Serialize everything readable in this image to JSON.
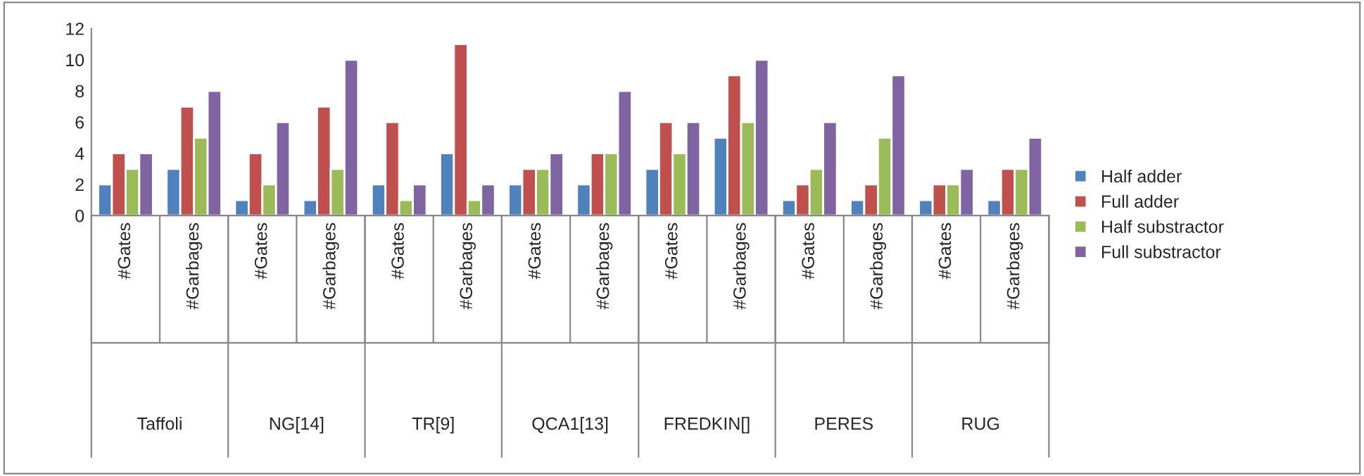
{
  "chart_data": {
    "type": "bar",
    "categories": [
      "#Gates",
      "#Garbages",
      "#Gates",
      "#Garbages",
      "#Gates",
      "#Garbages",
      "#Gates",
      "#Garbages",
      "#Gates",
      "#Garbages",
      "#Gates",
      "#Garbages",
      "#Gates",
      "#Garbages"
    ],
    "series": [
      {
        "name": "Half adder",
        "color": "#4f81bd",
        "values": [
          2,
          3,
          1,
          1,
          2,
          4,
          2,
          2,
          3,
          5,
          1,
          1,
          1,
          1
        ]
      },
      {
        "name": "Full adder",
        "color": "#c0504d",
        "values": [
          4,
          7,
          4,
          7,
          6,
          11,
          3,
          4,
          6,
          9,
          2,
          2,
          2,
          3
        ]
      },
      {
        "name": "Half substractor",
        "color": "#9bbb59",
        "values": [
          3,
          5,
          2,
          3,
          1,
          1,
          3,
          4,
          4,
          6,
          3,
          5,
          2,
          3
        ]
      },
      {
        "name": "Full substractor",
        "color": "#8064a2",
        "values": [
          4,
          8,
          6,
          10,
          2,
          2,
          4,
          8,
          6,
          10,
          6,
          9,
          3,
          5
        ]
      }
    ],
    "annotations": [
      "Taffoli",
      "NG[14]",
      "TR[9]",
      "QCA1[13]",
      "FREDKIN[]",
      "PERES",
      "RUG"
    ],
    "ylim": [
      0,
      12
    ],
    "yticks": [
      0,
      2,
      4,
      6,
      8,
      10,
      12
    ],
    "grid": false,
    "legend": "right"
  }
}
